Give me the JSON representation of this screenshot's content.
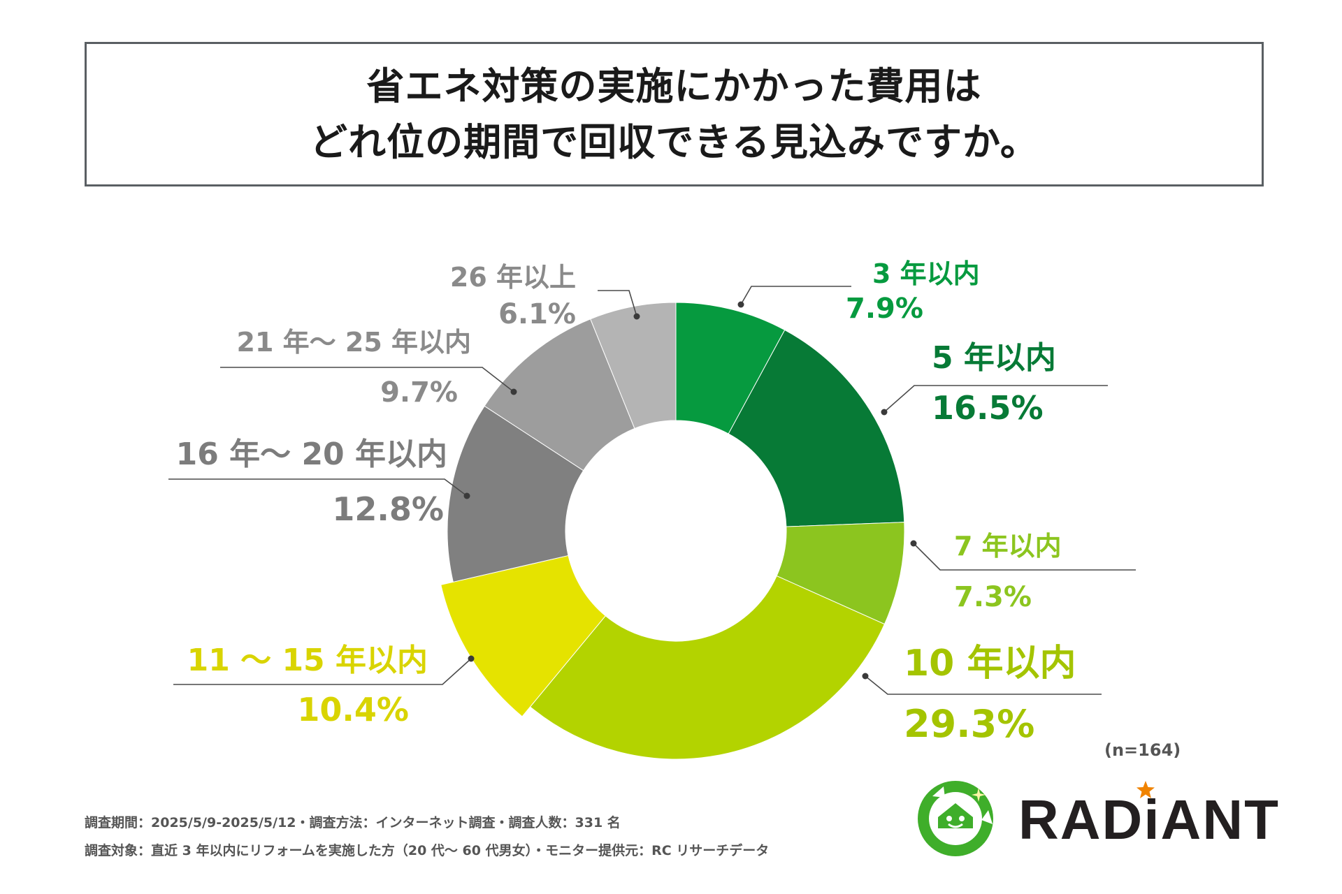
{
  "title": {
    "line1": "省エネ対策の実施にかかった費用は",
    "line2": "どれ位の期間で回収できる見込みですか。"
  },
  "chart_data": {
    "type": "pie",
    "variant": "donut",
    "title": "省エネ対策の実施にかかった費用はどれ位の期間で回収できる見込みですか。",
    "legend": "none",
    "sample_size_label": "(n=164)",
    "slices": [
      {
        "label": "3 年以内",
        "value": 7.9,
        "value_label": "7.9%",
        "color": "#069a3f",
        "text_color": "#069a3f"
      },
      {
        "label": "5 年以内",
        "value": 16.5,
        "value_label": "16.5%",
        "color": "#077a36",
        "text_color": "#077a36"
      },
      {
        "label": "7 年以内",
        "value": 7.3,
        "value_label": "7.3%",
        "color": "#8cc51f",
        "text_color": "#8cc51f"
      },
      {
        "label": "10 年以内",
        "value": 29.3,
        "value_label": "29.3%",
        "color": "#b3d300",
        "text_color": "#a4c400"
      },
      {
        "label": "11 ～ 15 年以内",
        "value": 10.4,
        "value_label": "10.4%",
        "color": "#e5e300",
        "text_color": "#d9d400"
      },
      {
        "label": "16 年～ 20 年以内",
        "value": 12.8,
        "value_label": "12.8%",
        "color": "#808080",
        "text_color": "#7c7c7c"
      },
      {
        "label": "21 年～ 25 年以内",
        "value": 9.7,
        "value_label": "9.7%",
        "color": "#9d9d9d",
        "text_color": "#8a8a8a"
      },
      {
        "label": "26 年以上",
        "value": 6.1,
        "value_label": "6.1%",
        "color": "#b4b4b4",
        "text_color": "#8a8a8a"
      }
    ]
  },
  "footer": {
    "line1": "調査期間：2025/5/9-2025/5/12・調査方法：インターネット調査・調査人数：331 名",
    "line2": "調査対象：直近 3 年以内にリフォームを実施した方（20 代～ 60 代男女）・モニター提供元：RC リサーチデータ"
  },
  "logo": {
    "brand": "RADiANT",
    "colors": {
      "green": "#3fae2a",
      "dark_green": "#1d8a2e",
      "text": "#231f20",
      "star": "#f08300"
    }
  }
}
